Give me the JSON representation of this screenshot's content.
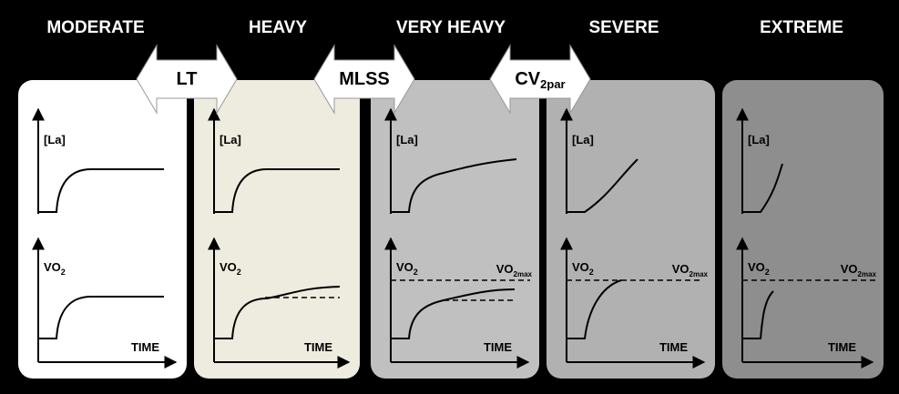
{
  "domains": [
    "MODERATE",
    "HEAVY",
    "VERY HEAVY",
    "SEVERE",
    "EXTREME"
  ],
  "thresholds": [
    {
      "main": "LT",
      "sub": ""
    },
    {
      "main": "MLSS",
      "sub": ""
    },
    {
      "main": "CV",
      "sub": "2par"
    }
  ],
  "axes": {
    "lactate": "[La]",
    "oxygen": {
      "main": "VO",
      "sub": "2"
    },
    "time": "TIME",
    "oxygen_max": {
      "main": "VO",
      "sub": "2max"
    }
  }
}
